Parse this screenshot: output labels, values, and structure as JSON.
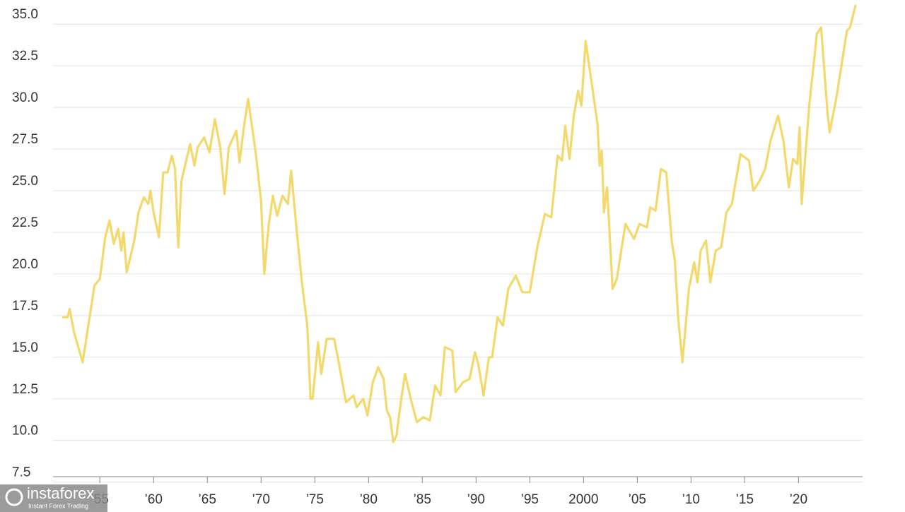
{
  "chart_data": {
    "type": "line",
    "x": [
      1951.6,
      1952.0,
      1952.2,
      1952.6,
      1953.4,
      1954.5,
      1955.0,
      1955.5,
      1955.9,
      1956.3,
      1956.7,
      1957.0,
      1957.2,
      1957.5,
      1958.2,
      1958.6,
      1959.1,
      1959.5,
      1959.7,
      1960.0,
      1960.5,
      1960.9,
      1961.3,
      1961.7,
      1962.0,
      1962.3,
      1962.6,
      1963.4,
      1963.8,
      1964.1,
      1964.7,
      1965.2,
      1965.7,
      1966.2,
      1966.6,
      1967.0,
      1967.7,
      1968.0,
      1968.4,
      1968.8,
      1969.5,
      1970.0,
      1970.3,
      1970.7,
      1971.1,
      1971.5,
      1972.0,
      1972.5,
      1972.8,
      1973.3,
      1973.8,
      1974.3,
      1974.6,
      1974.8,
      1975.3,
      1975.6,
      1976.1,
      1976.8,
      1977.2,
      1977.9,
      1978.6,
      1978.9,
      1979.5,
      1979.9,
      1980.4,
      1980.9,
      1981.4,
      1981.7,
      1982.0,
      1982.3,
      1982.6,
      1983.0,
      1983.4,
      1984.0,
      1984.5,
      1985.1,
      1985.7,
      1986.2,
      1986.7,
      1987.1,
      1987.8,
      1988.1,
      1988.8,
      1989.4,
      1989.9,
      1990.2,
      1990.7,
      1991.2,
      1991.5,
      1992.0,
      1992.5,
      1993.0,
      1993.7,
      1994.3,
      1995.0,
      1995.7,
      1996.4,
      1997.0,
      1997.6,
      1998.0,
      1998.3,
      1998.7,
      1999.1,
      1999.5,
      1999.8,
      2000.2,
      2000.6,
      2001.3,
      2001.5,
      2001.7,
      2001.9,
      2002.2,
      2002.7,
      2003.1,
      2003.9,
      2004.7,
      2005.2,
      2005.9,
      2006.2,
      2006.7,
      2007.2,
      2007.7,
      2008.2,
      2008.5,
      2008.8,
      2009.2,
      2009.8,
      2010.3,
      2010.6,
      2010.9,
      2011.4,
      2011.8,
      2012.3,
      2012.8,
      2013.3,
      2013.8,
      2014.6,
      2015.4,
      2015.8,
      2016.4,
      2016.9,
      2017.4,
      2018.1,
      2018.6,
      2019.1,
      2019.5,
      2019.9,
      2020.1,
      2020.3,
      2021.0,
      2021.5,
      2021.7,
      2022.1,
      2022.7,
      2022.9,
      2023.5,
      2023.9,
      2024.5,
      2024.8,
      2025.3
    ],
    "series": [
      {
        "color": "#f3d96c",
        "values": [
          17.4,
          17.4,
          17.9,
          16.5,
          14.7,
          19.3,
          19.7,
          22.2,
          23.2,
          21.8,
          22.7,
          21.4,
          22.5,
          20.1,
          22.0,
          23.7,
          24.6,
          24.2,
          25.0,
          23.7,
          22.2,
          26.1,
          26.1,
          27.1,
          26.3,
          21.6,
          25.6,
          27.8,
          26.5,
          27.6,
          28.2,
          27.3,
          29.3,
          27.6,
          24.8,
          27.6,
          28.6,
          26.7,
          28.8,
          30.5,
          27.3,
          24.4,
          20.0,
          22.9,
          24.7,
          23.5,
          24.7,
          24.2,
          26.2,
          22.7,
          19.5,
          16.9,
          12.5,
          12.5,
          15.9,
          14.0,
          16.1,
          16.1,
          14.8,
          12.3,
          12.7,
          12.0,
          12.5,
          11.5,
          13.5,
          14.4,
          13.7,
          11.8,
          11.4,
          9.9,
          10.3,
          12.3,
          14.0,
          12.3,
          11.1,
          11.4,
          11.2,
          13.3,
          12.7,
          15.6,
          15.4,
          12.9,
          13.5,
          13.7,
          15.3,
          14.6,
          12.7,
          15.0,
          15.0,
          17.4,
          16.9,
          19.1,
          19.9,
          18.9,
          18.9,
          21.6,
          23.6,
          23.4,
          27.1,
          26.8,
          28.9,
          26.9,
          29.5,
          31.0,
          30.1,
          34.0,
          32.2,
          29.0,
          26.5,
          27.4,
          23.7,
          25.2,
          19.1,
          19.7,
          23.0,
          22.1,
          23.0,
          22.8,
          24.0,
          23.8,
          26.3,
          26.1,
          22.0,
          20.8,
          17.4,
          14.7,
          19.1,
          20.7,
          19.5,
          21.4,
          22.0,
          19.5,
          21.4,
          21.6,
          23.7,
          24.2,
          27.2,
          26.8,
          25.0,
          25.6,
          26.3,
          28.0,
          29.5,
          28.0,
          25.2,
          26.9,
          26.6,
          28.8,
          24.2,
          30.1,
          33.1,
          34.4,
          34.8,
          29.7,
          28.5,
          30.5,
          32.1,
          34.6,
          34.8,
          36.1
        ]
      }
    ],
    "xlim": [
      1951.5,
      2025.7
    ],
    "ylim": [
      7.4,
      36.45
    ],
    "yticks": [
      {
        "value": 7.5,
        "label": "7.5"
      },
      {
        "value": 10,
        "label": "10.0"
      },
      {
        "value": 12.5,
        "label": "12.5"
      },
      {
        "value": 15,
        "label": "15.0"
      },
      {
        "value": 17.5,
        "label": "17.5"
      },
      {
        "value": 20,
        "label": "20.0"
      },
      {
        "value": 22.5,
        "label": "22.5"
      },
      {
        "value": 25,
        "label": "25.0"
      },
      {
        "value": 27.5,
        "label": "27.5"
      },
      {
        "value": 30,
        "label": "30.0"
      },
      {
        "value": 32.5,
        "label": "32.5"
      },
      {
        "value": 35,
        "label": "35.0"
      }
    ],
    "xticks": [
      {
        "value": 1955,
        "label": "’55"
      },
      {
        "value": 1960,
        "label": "’60"
      },
      {
        "value": 1965,
        "label": "’65"
      },
      {
        "value": 1970,
        "label": "’70"
      },
      {
        "value": 1975,
        "label": "’75"
      },
      {
        "value": 1980,
        "label": "’80"
      },
      {
        "value": 1985,
        "label": "’85"
      },
      {
        "value": 1990,
        "label": "’90"
      },
      {
        "value": 1995,
        "label": "’95"
      },
      {
        "value": 2000,
        "label": "2000"
      },
      {
        "value": 2005,
        "label": "’05"
      },
      {
        "value": 2010,
        "label": "’10"
      },
      {
        "value": 2015,
        "label": "’15"
      },
      {
        "value": 2020,
        "label": "’20"
      }
    ],
    "grid": true
  },
  "watermark": {
    "brand": "instaforex",
    "tagline": "Instant Forex Trading"
  }
}
